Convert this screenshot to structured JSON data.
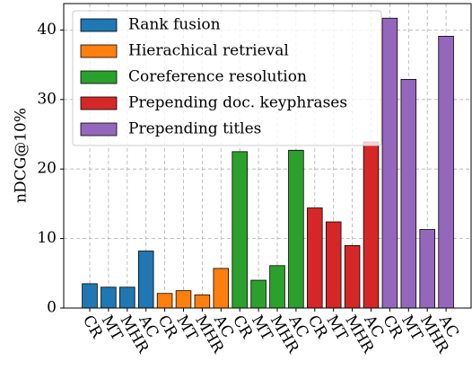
{
  "chart_data": {
    "type": "bar",
    "ylabel": "nDCG@10%",
    "categories": [
      "CR",
      "MT",
      "MHR",
      "AC",
      "CR",
      "MT",
      "MHR",
      "AC",
      "CR",
      "MT",
      "MHR",
      "AC",
      "CR",
      "MT",
      "MHR",
      "AC",
      "CR",
      "MT",
      "MHR",
      "AC"
    ],
    "series": [
      {
        "name": "Rank fusion",
        "color": "#1f77b4",
        "values": [
          3.5,
          3.0,
          3.0,
          8.2,
          null,
          null,
          null,
          null,
          null,
          null,
          null,
          null,
          null,
          null,
          null,
          null,
          null,
          null,
          null,
          null
        ]
      },
      {
        "name": "Hierachical retrieval",
        "color": "#ff7f0e",
        "values": [
          null,
          null,
          null,
          null,
          2.1,
          2.5,
          1.9,
          5.7,
          null,
          null,
          null,
          null,
          null,
          null,
          null,
          null,
          null,
          null,
          null,
          null
        ]
      },
      {
        "name": "Coreference resolution",
        "color": "#2ca02c",
        "values": [
          null,
          null,
          null,
          null,
          null,
          null,
          null,
          null,
          22.5,
          4.0,
          6.1,
          22.7,
          null,
          null,
          null,
          null,
          null,
          null,
          null,
          null
        ]
      },
      {
        "name": "Prepending doc. keyphrases",
        "color": "#d62728",
        "values": [
          null,
          null,
          null,
          null,
          null,
          null,
          null,
          null,
          null,
          null,
          null,
          null,
          14.4,
          12.4,
          9.0,
          23.9,
          null,
          null,
          null,
          null
        ]
      },
      {
        "name": "Prepending titles",
        "color": "#9467bd",
        "values": [
          null,
          null,
          null,
          null,
          null,
          null,
          null,
          null,
          null,
          null,
          null,
          null,
          null,
          null,
          null,
          null,
          41.7,
          32.9,
          11.3,
          39.1
        ]
      }
    ],
    "ylim": [
      0,
      43.8
    ],
    "yticks": [
      0,
      10,
      20,
      30,
      40
    ],
    "grid": true,
    "legend": "upper left"
  }
}
